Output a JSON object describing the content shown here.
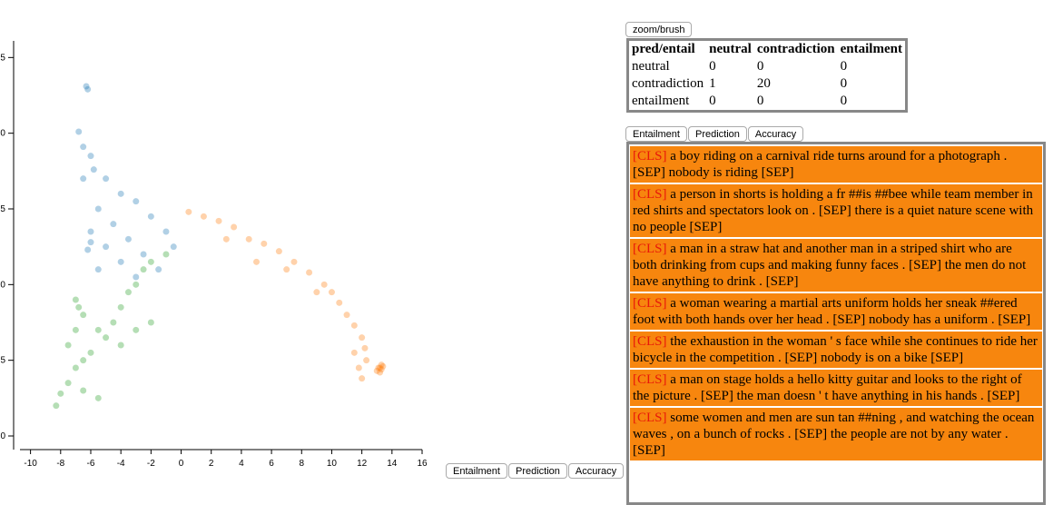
{
  "chart_data": {
    "type": "scatter",
    "xlim": [
      -10.7,
      16
    ],
    "ylim": [
      -0.9,
      26.1
    ],
    "xticks": [
      -10,
      -8,
      -6,
      -4,
      -2,
      0,
      2,
      4,
      6,
      8,
      10,
      12,
      14,
      16
    ],
    "yticks": [
      0,
      5,
      10,
      15,
      20,
      25
    ],
    "opacity": 0.35,
    "series": [
      {
        "color": "#1f77b4",
        "x": [
          -6.3,
          -6.2,
          -6.8,
          -6.5,
          -6,
          -5.8,
          -5,
          -6.5,
          -4,
          -3,
          -5.5,
          -2,
          -4.5,
          -6,
          -3.5,
          -1,
          -5,
          -2.5,
          -6,
          -4,
          -1.5,
          -5.5,
          -3,
          -6.2,
          -0.5
        ],
        "y": [
          23.1,
          22.9,
          20.1,
          19.1,
          18.5,
          17.6,
          17,
          17,
          16,
          15.5,
          15,
          14.5,
          14,
          13.5,
          13,
          13.5,
          12.5,
          12,
          12.8,
          11.5,
          11,
          11,
          10.5,
          12.3,
          12.5
        ]
      },
      {
        "color": "#ff7f0e",
        "x": [
          0.5,
          1.5,
          2.5,
          3.5,
          4.5,
          5.5,
          6.5,
          7.5,
          8.5,
          9.5,
          10,
          10.5,
          11,
          11.5,
          12,
          12.2,
          11.8,
          12,
          11.5,
          7,
          9,
          3,
          5,
          12.3,
          13.1,
          13.3,
          13.2,
          13.4,
          13,
          13.3,
          13.2
        ],
        "y": [
          14.8,
          14.5,
          14.2,
          13.8,
          13,
          12.7,
          12.2,
          11.5,
          10.8,
          10,
          9.5,
          8.8,
          8,
          7.3,
          6.5,
          5.8,
          4.5,
          3.8,
          5.5,
          11,
          9.5,
          13,
          11.5,
          5,
          4.5,
          4.4,
          4.2,
          4.6,
          4.3,
          4.7,
          4.5
        ]
      },
      {
        "color": "#2ca02c",
        "x": [
          -8.3,
          -8,
          -7.5,
          -7,
          -6.5,
          -6,
          -7.5,
          -7,
          -6.8,
          -7,
          -6.5,
          -5.5,
          -5,
          -4.5,
          -4,
          -3.5,
          -3,
          -2.5,
          -2,
          -1,
          -5.5,
          -6.5,
          -4,
          -2,
          -3
        ],
        "y": [
          2,
          2.8,
          3.5,
          4.5,
          5,
          5.5,
          6,
          7,
          8.5,
          9,
          8,
          7,
          6.5,
          7.5,
          8.5,
          9.5,
          10,
          11,
          11.5,
          12,
          2.5,
          3,
          6,
          7.5,
          7
        ]
      }
    ]
  },
  "zoom_button": "zoom/brush",
  "confusion_table": {
    "header": [
      "pred/entail",
      "neutral",
      "contradiction",
      "entailment"
    ],
    "rows": [
      [
        "neutral",
        "0",
        "0",
        "0"
      ],
      [
        "contradiction",
        "1",
        "20",
        "0"
      ],
      [
        "entailment",
        "0",
        "0",
        "0"
      ]
    ]
  },
  "top_buttons": [
    "Entailment",
    "Prediction",
    "Accuracy"
  ],
  "bottom_buttons": [
    "Entailment",
    "Prediction",
    "Accuracy"
  ],
  "examples": [
    {
      "cls": "[CLS]",
      "text": "a boy riding on a carnival ride turns around for a photograph . [SEP] nobody is riding [SEP]"
    },
    {
      "cls": "[CLS]",
      "text": "a person in shorts is holding a fr ##is ##bee while team member in red shirts and spectators look on . [SEP] there is a quiet nature scene with no people [SEP]"
    },
    {
      "cls": "[CLS]",
      "text": "a man in a straw hat and another man in a striped shirt who are both drinking from cups and making funny faces . [SEP] the men do not have anything to drink . [SEP]"
    },
    {
      "cls": "[CLS]",
      "text": "a woman wearing a martial arts uniform holds her sneak ##ered foot with both hands over her head . [SEP] nobody has a uniform . [SEP]"
    },
    {
      "cls": "[CLS]",
      "text": "the exhaustion in the woman ' s face while she continues to ride her bicycle in the competition . [SEP] nobody is on a bike [SEP]"
    },
    {
      "cls": "[CLS]",
      "text": "a man on stage holds a hello kitty guitar and looks to the right of the picture . [SEP] the man doesn ' t have anything in his hands . [SEP]"
    },
    {
      "cls": "[CLS]",
      "text": "some women and men are sun tan ##ning , and watching the ocean waves , on a bunch of rocks . [SEP] the people are not by any water . [SEP]"
    }
  ]
}
